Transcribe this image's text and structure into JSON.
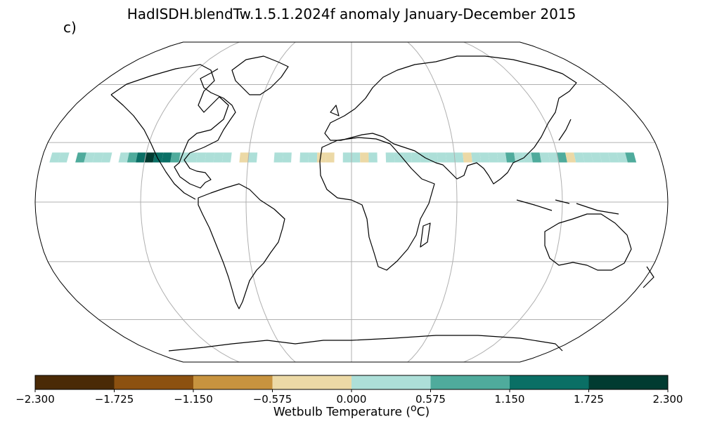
{
  "title": "HadISDH.blendTw.1.5.1.2024f anomaly January-December 2015",
  "panel_label": "c)",
  "colorbar": {
    "label_text": "Wetbulb Temperature (",
    "label_sup": "o",
    "label_unit": "C)",
    "ticks": [
      "−2.300",
      "−1.725",
      "−1.150",
      "−0.575",
      "0.000",
      "0.575",
      "1.150",
      "1.725",
      "2.300"
    ],
    "tick_values": [
      -2.3,
      -1.725,
      -1.15,
      -0.575,
      0.0,
      0.575,
      1.15,
      1.725,
      2.3
    ],
    "colors": [
      "#4a2a06",
      "#8c5110",
      "#c7933f",
      "#ecd9a6",
      "#addfd8",
      "#4fab9c",
      "#0a6f65",
      "#013b31"
    ]
  },
  "map": {
    "projection": "Robinson",
    "graticule": true,
    "cell_size_deg": 5,
    "anomaly_cells": [
      {
        "lon": -172.5,
        "lat": 22.5,
        "v": 0.3
      },
      {
        "lon": -167.5,
        "lat": 22.5,
        "v": 0.3
      },
      {
        "lon": -157.5,
        "lat": 22.5,
        "v": 0.9
      },
      {
        "lon": -152.5,
        "lat": 22.5,
        "v": 0.3
      },
      {
        "lon": -147.5,
        "lat": 22.5,
        "v": 0.3
      },
      {
        "lon": -142.5,
        "lat": 22.5,
        "v": 0.3
      },
      {
        "lon": -132.5,
        "lat": 22.5,
        "v": 0.3
      },
      {
        "lon": -127.5,
        "lat": 22.5,
        "v": 0.9
      },
      {
        "lon": -122.5,
        "lat": 22.5,
        "v": 1.4
      },
      {
        "lon": -117.5,
        "lat": 22.5,
        "v": 1.9
      },
      {
        "lon": -112.5,
        "lat": 22.5,
        "v": 1.4
      },
      {
        "lon": -107.5,
        "lat": 22.5,
        "v": 1.4
      },
      {
        "lon": -102.5,
        "lat": 22.5,
        "v": 0.9
      },
      {
        "lon": -97.5,
        "lat": 22.5,
        "v": 0.3
      },
      {
        "lon": -92.5,
        "lat": 22.5,
        "v": 0.3
      },
      {
        "lon": -87.5,
        "lat": 22.5,
        "v": 0.3
      },
      {
        "lon": -82.5,
        "lat": 22.5,
        "v": 0.3
      },
      {
        "lon": -77.5,
        "lat": 22.5,
        "v": 0.3
      },
      {
        "lon": -72.5,
        "lat": 22.5,
        "v": 0.3
      },
      {
        "lon": -62.5,
        "lat": 22.5,
        "v": -0.3
      },
      {
        "lon": -57.5,
        "lat": 22.5,
        "v": 0.3
      },
      {
        "lon": -42.5,
        "lat": 22.5,
        "v": 0.3
      },
      {
        "lon": -37.5,
        "lat": 22.5,
        "v": 0.3
      },
      {
        "lon": -27.5,
        "lat": 22.5,
        "v": 0.3
      },
      {
        "lon": -22.5,
        "lat": 22.5,
        "v": 0.3
      },
      {
        "lon": -17.5,
        "lat": 22.5,
        "v": -0.3
      },
      {
        "lon": -12.5,
        "lat": 22.5,
        "v": -0.3
      },
      {
        "lon": -2.5,
        "lat": 22.5,
        "v": 0.3
      },
      {
        "lon": 2.5,
        "lat": 22.5,
        "v": 0.3
      },
      {
        "lon": 7.5,
        "lat": 22.5,
        "v": -0.3
      },
      {
        "lon": 12.5,
        "lat": 22.5,
        "v": 0.3
      },
      {
        "lon": 22.5,
        "lat": 22.5,
        "v": 0.3
      },
      {
        "lon": 27.5,
        "lat": 22.5,
        "v": 0.3
      },
      {
        "lon": 32.5,
        "lat": 22.5,
        "v": 0.3
      },
      {
        "lon": 37.5,
        "lat": 22.5,
        "v": 0.3
      },
      {
        "lon": 42.5,
        "lat": 22.5,
        "v": 0.3
      },
      {
        "lon": 47.5,
        "lat": 22.5,
        "v": 0.3
      },
      {
        "lon": 52.5,
        "lat": 22.5,
        "v": 0.3
      },
      {
        "lon": 57.5,
        "lat": 22.5,
        "v": 0.3
      },
      {
        "lon": 62.5,
        "lat": 22.5,
        "v": 0.3
      },
      {
        "lon": 67.5,
        "lat": 22.5,
        "v": -0.3
      },
      {
        "lon": 72.5,
        "lat": 22.5,
        "v": 0.3
      },
      {
        "lon": 77.5,
        "lat": 22.5,
        "v": 0.3
      },
      {
        "lon": 82.5,
        "lat": 22.5,
        "v": 0.3
      },
      {
        "lon": 87.5,
        "lat": 22.5,
        "v": 0.3
      },
      {
        "lon": 92.5,
        "lat": 22.5,
        "v": 0.9
      },
      {
        "lon": 97.5,
        "lat": 22.5,
        "v": 0.3
      },
      {
        "lon": 102.5,
        "lat": 22.5,
        "v": 0.3
      },
      {
        "lon": 107.5,
        "lat": 22.5,
        "v": 0.9
      },
      {
        "lon": 112.5,
        "lat": 22.5,
        "v": 0.3
      },
      {
        "lon": 117.5,
        "lat": 22.5,
        "v": 0.3
      },
      {
        "lon": 122.5,
        "lat": 22.5,
        "v": 0.9
      },
      {
        "lon": 127.5,
        "lat": 22.5,
        "v": -0.3
      },
      {
        "lon": 132.5,
        "lat": 22.5,
        "v": 0.3
      },
      {
        "lon": 137.5,
        "lat": 22.5,
        "v": 0.3
      },
      {
        "lon": 142.5,
        "lat": 22.5,
        "v": 0.3
      },
      {
        "lon": 147.5,
        "lat": 22.5,
        "v": 0.3
      },
      {
        "lon": 152.5,
        "lat": 22.5,
        "v": 0.3
      },
      {
        "lon": 157.5,
        "lat": 22.5,
        "v": 0.3
      },
      {
        "lon": 162.5,
        "lat": 22.5,
        "v": 0.9
      }
    ]
  }
}
